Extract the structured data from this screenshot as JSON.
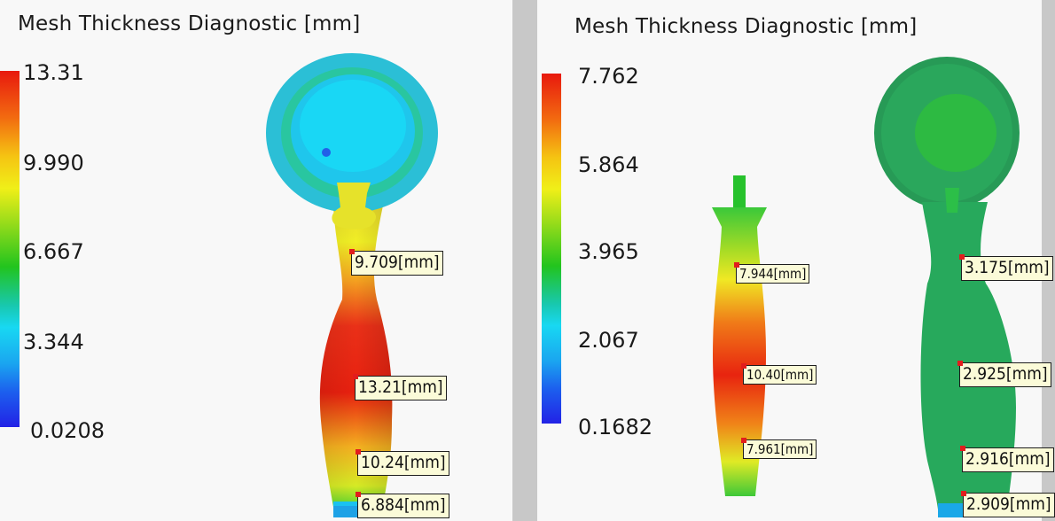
{
  "left_panel": {
    "title": "Mesh Thickness Diagnostic [mm]",
    "legend": [
      "13.31",
      "9.990",
      "6.667",
      "3.344",
      "0.0208"
    ],
    "labels": [
      "9.709[mm]",
      "13.21[mm]",
      "10.24[mm]",
      "6.884[mm]"
    ]
  },
  "right_panel": {
    "title": "Mesh Thickness Diagnostic [mm]",
    "legend": [
      "7.762",
      "5.864",
      "3.965",
      "2.067",
      "0.1682"
    ],
    "labels_section": [
      "7.944[mm]",
      "10.40[mm]",
      "7.961[mm]"
    ],
    "labels_model": [
      "3.175[mm]",
      "2.925[mm]",
      "2.916[mm]",
      "2.909[mm]"
    ]
  },
  "colors": {
    "red": "#e8190e",
    "yellow": "#f0ef18",
    "green": "#22c41e",
    "cyan": "#18d8f2",
    "blue": "#2222e6",
    "model_green": "#2fbf5a",
    "label_bg": "#fbfbd8"
  }
}
